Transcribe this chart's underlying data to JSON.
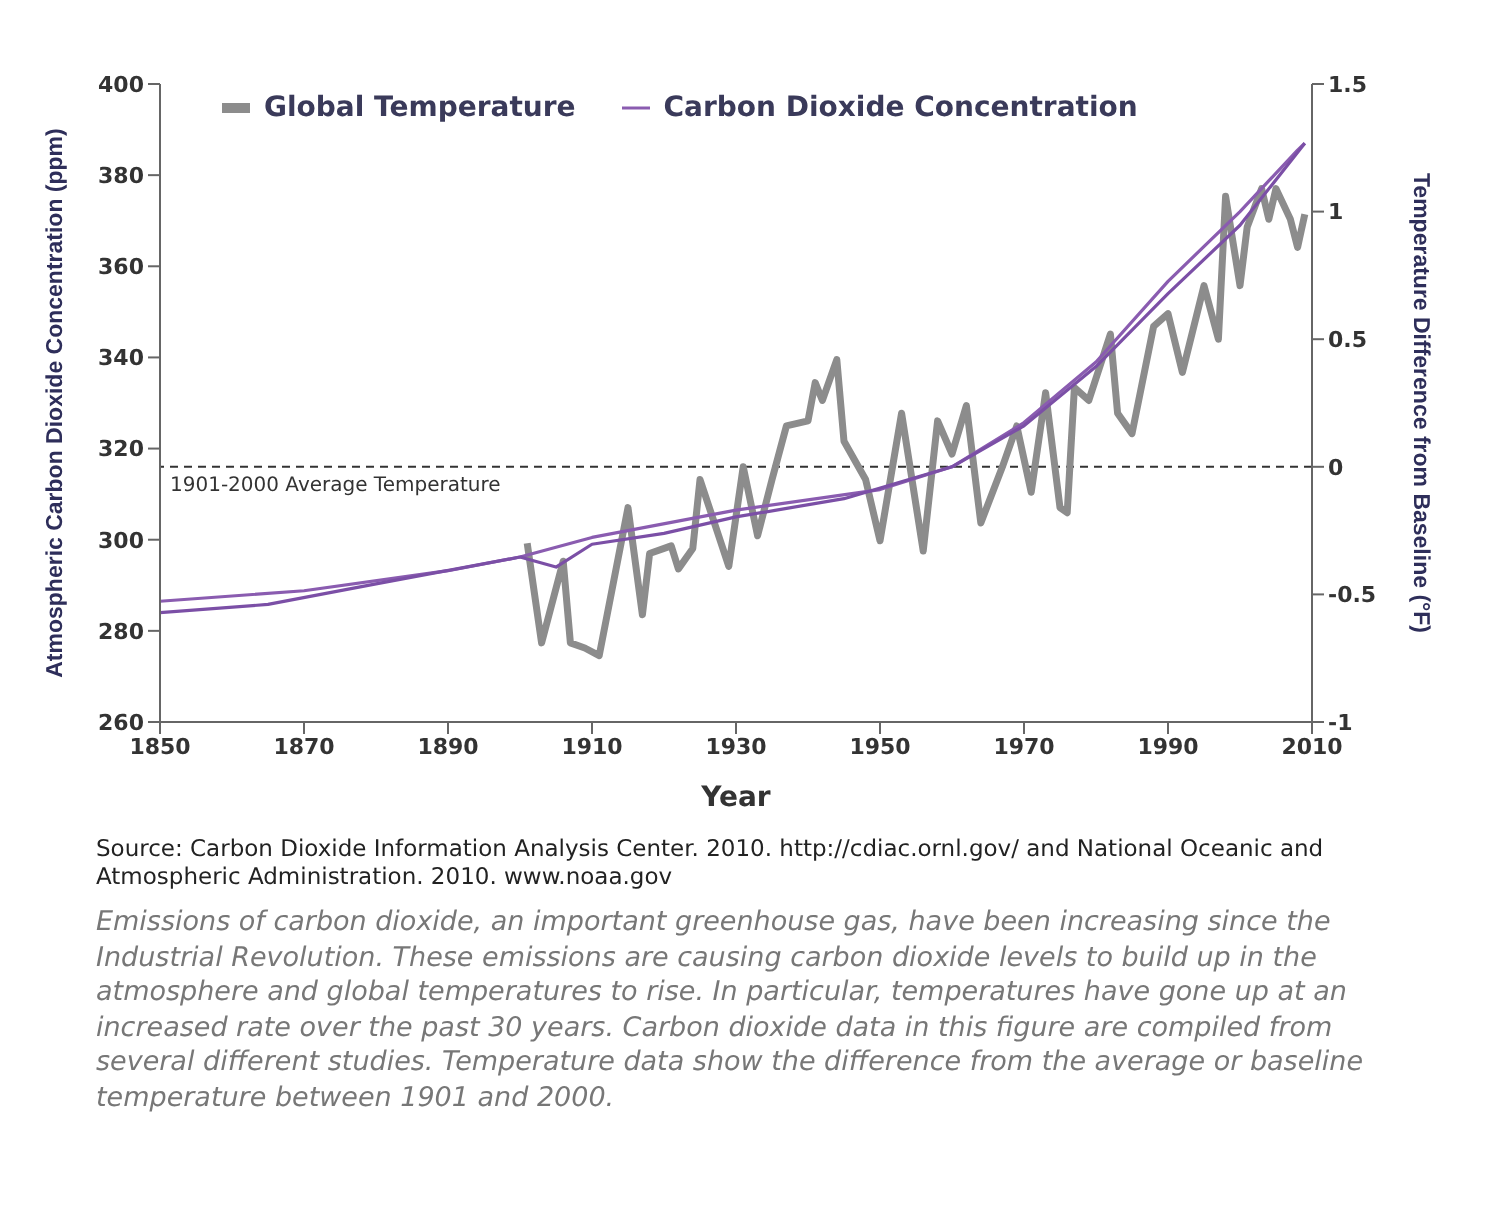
{
  "chart_data": {
    "type": "line",
    "xlabel": "Year",
    "ylabel": "Atmospheric Carbon Dioxide Concentration (ppm)",
    "y2label": "Temperature Difference from Baseline (°F)",
    "xlim": [
      1850,
      2010
    ],
    "xticks": [
      1850,
      1870,
      1890,
      1910,
      1930,
      1950,
      1970,
      1990,
      2010
    ],
    "ylim": [
      260,
      400
    ],
    "yticks": [
      260,
      280,
      300,
      320,
      340,
      360,
      380,
      400
    ],
    "y2lim": [
      -1,
      1.5
    ],
    "y2ticks": [
      -1,
      -0.5,
      0,
      0.5,
      1,
      1.5
    ],
    "legend": "top",
    "grid": false,
    "marker": "none",
    "line_style": "solid",
    "ref_lines": [
      {
        "axis": "y2",
        "value": 0,
        "label": "1901-2000 Average Temperature",
        "color": "#333333",
        "line_style": "dashed"
      }
    ],
    "series": [
      {
        "name": "Global Temperature",
        "color": "#8c8c8c",
        "axis": "y2",
        "x": [
          1901,
          1903,
          1906,
          1907,
          1909,
          1911,
          1915,
          1917,
          1918,
          1921,
          1922,
          1924,
          1925,
          1929,
          1931,
          1933,
          1935,
          1937,
          1940,
          1941,
          1942,
          1944,
          1945,
          1948,
          1950,
          1953,
          1956,
          1958,
          1960,
          1962,
          1964,
          1967,
          1969,
          1971,
          1973,
          1975,
          1976,
          1977,
          1979,
          1982,
          1983,
          1985,
          1988,
          1990,
          1992,
          1995,
          1997,
          1998,
          2000,
          2001,
          2003,
          2004,
          2005,
          2007,
          2008,
          2009
        ],
        "values": [
          -0.3,
          -0.69,
          -0.37,
          -0.69,
          -0.71,
          -0.74,
          -0.16,
          -0.58,
          -0.34,
          -0.31,
          -0.4,
          -0.32,
          -0.05,
          -0.39,
          0,
          -0.27,
          -0.05,
          0.16,
          0.18,
          0.33,
          0.26,
          0.42,
          0.1,
          -0.05,
          -0.29,
          0.21,
          -0.33,
          0.18,
          0.05,
          0.24,
          -0.22,
          0,
          0.16,
          -0.1,
          0.29,
          -0.16,
          -0.18,
          0.31,
          0.26,
          0.52,
          0.21,
          0.13,
          0.55,
          0.6,
          0.37,
          0.71,
          0.5,
          1.06,
          0.71,
          0.94,
          1.09,
          0.97,
          1.09,
          0.97,
          0.86,
          0.99
        ]
      },
      {
        "name": "Carbon Dioxide Concentration",
        "color": "#8a5cb0",
        "axis": "y",
        "x": [
          1850,
          1870,
          1890,
          1900,
          1910,
          1930,
          1950,
          1960,
          1970,
          1980,
          1990,
          2000,
          2008,
          2009
        ],
        "values": [
          286.5,
          288.8,
          293.2,
          296.2,
          300.5,
          306.5,
          311,
          316,
          325.7,
          339,
          356.7,
          372,
          385.5,
          387
        ]
      },
      {
        "color": "#7b4fa6",
        "axis": "y",
        "x": [
          1850,
          1865,
          1880,
          1900,
          1905,
          1910,
          1920,
          1930,
          1945,
          1960,
          1970,
          1980,
          1990,
          2000,
          2009
        ],
        "values": [
          284,
          285.8,
          290.3,
          296.2,
          294,
          299,
          301.4,
          305,
          309,
          316,
          325,
          338,
          354,
          369,
          387
        ]
      }
    ],
    "annotations": [
      "Source: Carbon Dioxide Information Analysis Center. 2010. http://cdiac.ornl.gov/ and National Oceanic and Atmospheric Administration. 2010. www.noaa.gov",
      "Emissions of carbon dioxide, an important greenhouse gas, have been increasing since the Industrial Revolution. These emissions are causing carbon dioxide levels to build up in the atmosphere and global temperatures to rise. In particular, temperatures have gone up at an increased rate over the past 30 years. Carbon dioxide data in this figure are compiled from several different studies. Temperature data show the difference from the average or baseline temperature between 1901 and 2000."
    ]
  }
}
